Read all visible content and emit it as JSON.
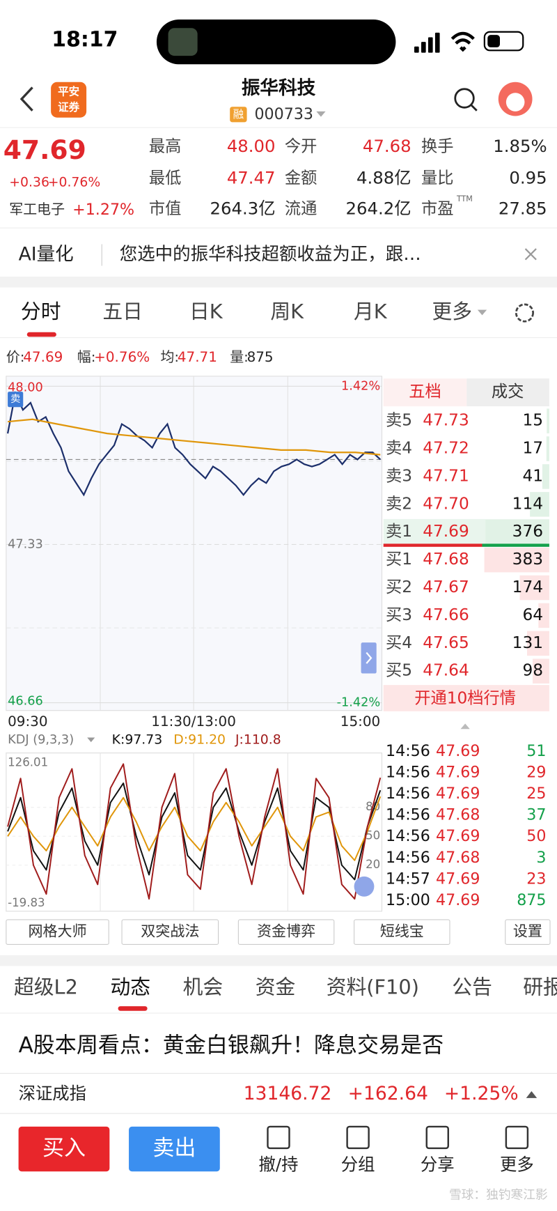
{
  "status": {
    "time": "18:17"
  },
  "header": {
    "logo_top": "平安",
    "logo_bottom": "证券",
    "title": "振华科技",
    "badge": "融",
    "code": "000733"
  },
  "quote": {
    "price": "47.69",
    "change": "+0.36",
    "change_pct": "+0.76%",
    "sector": "军工电子",
    "sector_pct": "+1.27%",
    "ttm": "TTM",
    "fields": [
      [
        {
          "label": "最高",
          "value": "48.00",
          "color": "#e0262b"
        },
        {
          "label": "今开",
          "value": "47.68",
          "color": "#e0262b"
        },
        {
          "label": "换手",
          "value": "1.85%",
          "color": "#222222"
        }
      ],
      [
        {
          "label": "最低",
          "value": "47.47",
          "color": "#e0262b"
        },
        {
          "label": "金额",
          "value": "4.88亿",
          "color": "#222222"
        },
        {
          "label": "量比",
          "value": "0.95",
          "color": "#222222"
        }
      ],
      [
        {
          "label": "市值",
          "value": "264.3亿",
          "color": "#222222"
        },
        {
          "label": "流通",
          "value": "264.2亿",
          "color": "#222222"
        },
        {
          "label": "市盈",
          "value": "27.85",
          "color": "#222222"
        }
      ]
    ]
  },
  "ai": {
    "label": "AI量化",
    "text": "您选中的振华科技超额收益为正，跟…"
  },
  "tabs": {
    "items": [
      "分时",
      "五日",
      "日K",
      "周K",
      "月K",
      "更多"
    ],
    "active": 0
  },
  "info": {
    "items": [
      {
        "label": "价:",
        "value": "47.69"
      },
      {
        "label": "幅:",
        "value": "+0.76%"
      },
      {
        "label": "均:",
        "value": "47.71"
      },
      {
        "label": "量:",
        "value": "875"
      }
    ]
  },
  "chart_data": [
    {
      "type": "line",
      "ylim": [
        46.66,
        48.0
      ],
      "yticks": [
        {
          "value": 48.0,
          "label": "48.00"
        },
        {
          "value": 47.33,
          "label": "47.33"
        },
        {
          "value": 46.66,
          "label": "46.66"
        }
      ],
      "pct_top": "1.42%",
      "pct_bottom": "-1.42%",
      "x_labels": [
        "09:30",
        "11:30/13:00",
        "15:00"
      ],
      "marker": "卖",
      "series": [
        {
          "color": "#1c2f6b",
          "values": [
            47.8,
            47.97,
            47.9,
            47.93,
            47.85,
            47.87,
            47.8,
            47.74,
            47.64,
            47.59,
            47.54,
            47.61,
            47.67,
            47.71,
            47.75,
            47.84,
            47.82,
            47.79,
            47.77,
            47.74,
            47.8,
            47.84,
            47.74,
            47.71,
            47.67,
            47.64,
            47.61,
            47.66,
            47.64,
            47.61,
            47.58,
            47.54,
            47.58,
            47.61,
            47.59,
            47.64,
            47.66,
            47.67,
            47.69,
            47.67,
            47.66,
            47.67,
            47.69,
            47.71,
            47.67,
            47.71,
            47.69,
            47.72,
            47.72,
            47.69
          ]
        },
        {
          "color": "#e0960a",
          "values": [
            47.85,
            47.86,
            47.84,
            47.82,
            47.8,
            47.79,
            47.78,
            47.77,
            47.76,
            47.75,
            47.74,
            47.73,
            47.73,
            47.72,
            47.72,
            47.71
          ]
        }
      ]
    },
    {
      "type": "line",
      "title": "KDJ (9,3,3)",
      "ylim": [
        -19.83,
        126.01
      ],
      "yticks": [
        126.01,
        80,
        50,
        20,
        -19.83
      ],
      "series": [
        {
          "label": "K:97.73",
          "color": "#111111",
          "values": [
            55,
            90,
            35,
            15,
            75,
            100,
            45,
            20,
            85,
            105,
            50,
            10,
            70,
            95,
            30,
            15,
            80,
            100,
            55,
            20,
            65,
            100,
            35,
            15,
            90,
            80,
            20,
            5,
            60,
            97.73
          ]
        },
        {
          "label": "D:91.20",
          "color": "#e0960a",
          "values": [
            50,
            70,
            50,
            35,
            60,
            80,
            60,
            40,
            70,
            90,
            65,
            35,
            60,
            80,
            50,
            35,
            65,
            85,
            65,
            40,
            60,
            80,
            50,
            35,
            70,
            75,
            40,
            25,
            55,
            91.2
          ]
        },
        {
          "label": "J:110.8",
          "color": "#a01c1c",
          "values": [
            60,
            110,
            20,
            -10,
            90,
            120,
            30,
            0,
            100,
            125,
            40,
            -15,
            80,
            115,
            10,
            -5,
            95,
            120,
            50,
            0,
            70,
            120,
            20,
            -10,
            110,
            90,
            0,
            -15,
            60,
            110.8
          ]
        }
      ]
    }
  ],
  "book": {
    "tabs": [
      "五档",
      "成交"
    ],
    "button": "开通10档行情",
    "rows": [
      {
        "label": "卖5",
        "price": "47.73",
        "volume": 15
      },
      {
        "label": "卖4",
        "price": "47.72",
        "volume": 17
      },
      {
        "label": "卖3",
        "price": "47.71",
        "volume": 41
      },
      {
        "label": "卖2",
        "price": "47.70",
        "volume": 114
      },
      {
        "label": "卖1",
        "price": "47.69",
        "volume": 376
      },
      {
        "label": "买1",
        "price": "47.68",
        "volume": 383
      },
      {
        "label": "买2",
        "price": "47.67",
        "volume": 174
      },
      {
        "label": "买3",
        "price": "47.66",
        "volume": 64
      },
      {
        "label": "买4",
        "price": "47.65",
        "volume": 131
      },
      {
        "label": "买5",
        "price": "47.64",
        "volume": 98
      }
    ]
  },
  "trades": [
    {
      "time": "14:56",
      "price": "47.69",
      "volume": 51,
      "color": "#13a04a"
    },
    {
      "time": "14:56",
      "price": "47.69",
      "volume": 29,
      "color": "#e0262b"
    },
    {
      "time": "14:56",
      "price": "47.69",
      "volume": 25,
      "color": "#e0262b"
    },
    {
      "time": "14:56",
      "price": "47.68",
      "volume": 37,
      "color": "#13a04a"
    },
    {
      "time": "14:56",
      "price": "47.69",
      "volume": 50,
      "color": "#e0262b"
    },
    {
      "time": "14:56",
      "price": "47.68",
      "volume": 3,
      "color": "#13a04a"
    },
    {
      "time": "14:57",
      "price": "47.69",
      "volume": 23,
      "color": "#e0262b"
    },
    {
      "time": "15:00",
      "price": "47.69",
      "volume": 875,
      "color": "#13a04a"
    }
  ],
  "tools": [
    "网格大师",
    "双突战法",
    "资金博弈",
    "短线宝",
    "设置"
  ],
  "tabs2": {
    "items": [
      "超级L2",
      "动态",
      "机会",
      "资金",
      "资料(F10)",
      "公告",
      "研报"
    ],
    "active": 1
  },
  "article": {
    "headline": "A股本周看点：黄金白银飙升！降息交易是否"
  },
  "index": {
    "name": "深证成指",
    "value": "13146.72",
    "change": "+162.64",
    "pct": "+1.25%"
  },
  "bottom": {
    "buy": "买入",
    "sell": "卖出",
    "items": [
      "撤/持",
      "分组",
      "分享",
      "更多"
    ]
  },
  "watermark": "雪球：独钓寒江影"
}
